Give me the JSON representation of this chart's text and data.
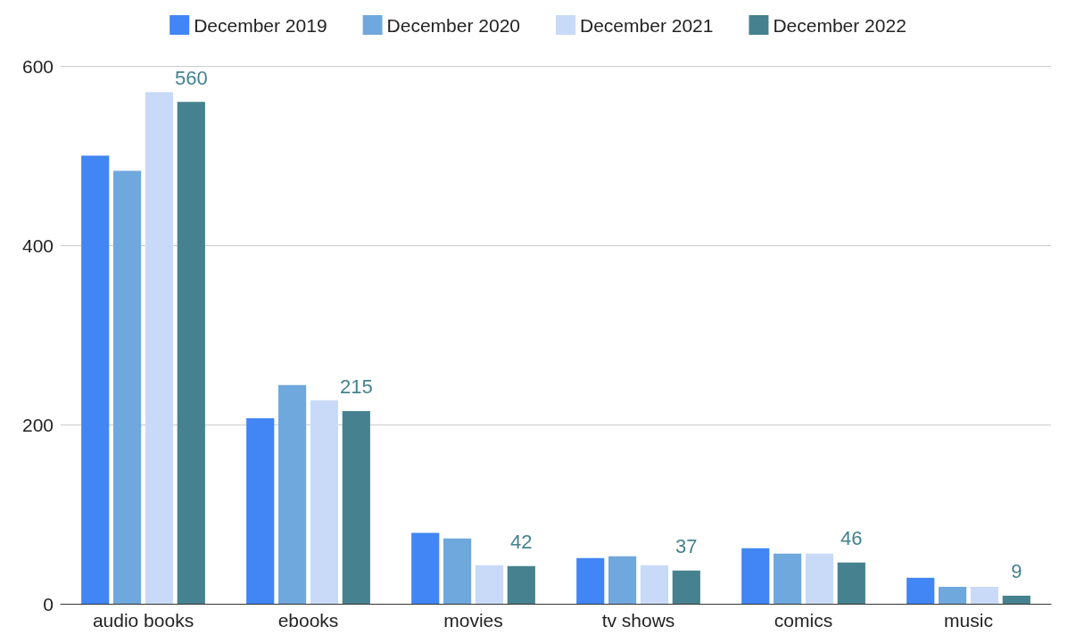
{
  "chart_data": {
    "type": "bar",
    "categories": [
      "audio books",
      "ebooks",
      "movies",
      "tv shows",
      "comics",
      "music"
    ],
    "series": [
      {
        "name": "December 2019",
        "color": "#4285f4",
        "values": [
          500,
          207,
          79,
          51,
          62,
          29
        ]
      },
      {
        "name": "December 2020",
        "color": "#6fa8dc",
        "values": [
          483,
          244,
          73,
          53,
          56,
          19
        ]
      },
      {
        "name": "December 2021",
        "color": "#c9daf8",
        "values": [
          571,
          227,
          43,
          43,
          56,
          19
        ]
      },
      {
        "name": "December 2022",
        "color": "#45818e",
        "values": [
          560,
          215,
          42,
          37,
          46,
          9
        ],
        "value_labels": [
          "560",
          "215",
          "42",
          "37",
          "46",
          "9"
        ]
      }
    ],
    "ylim": [
      0,
      600
    ],
    "yticks": [
      0,
      200,
      400,
      600
    ],
    "grid": "y",
    "legend": "top"
  }
}
